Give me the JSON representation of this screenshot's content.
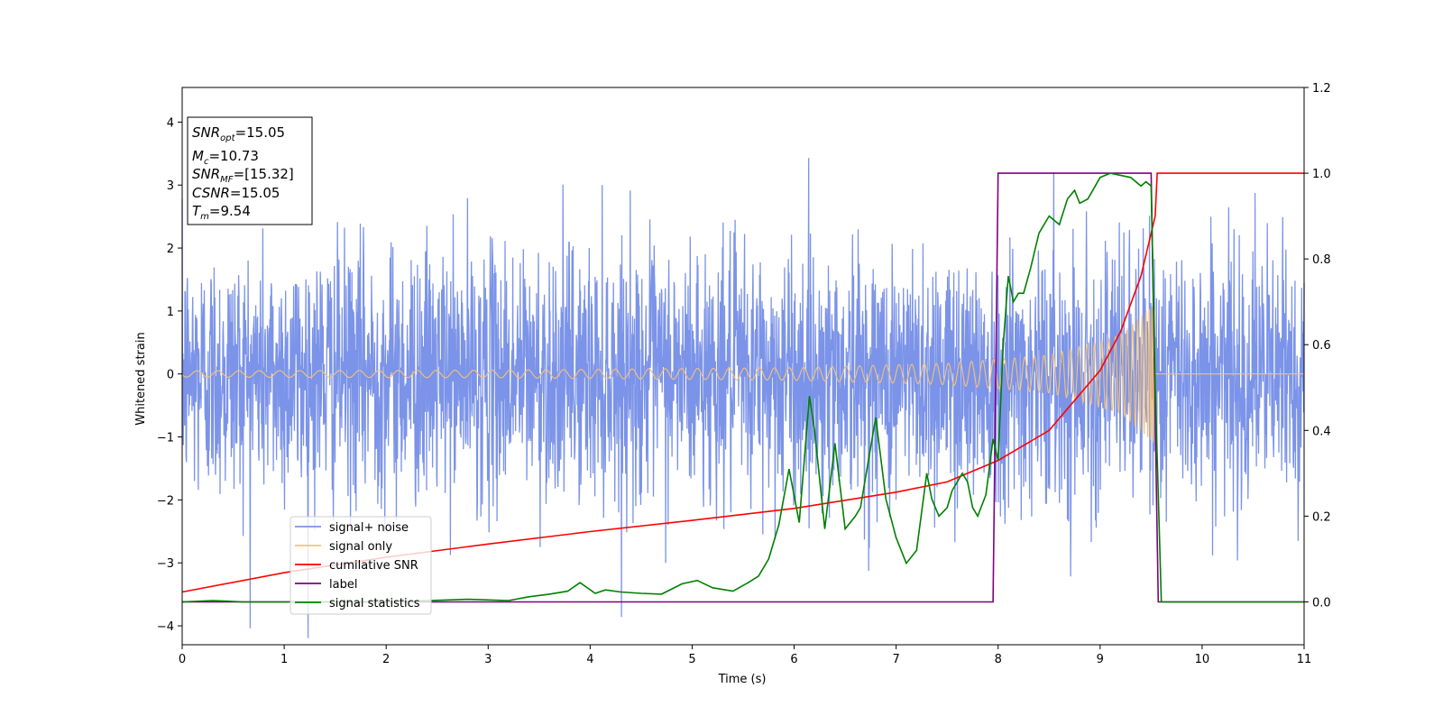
{
  "chart_data": {
    "type": "line",
    "xlabel": "Time (s)",
    "ylabel": "Whitened strain",
    "xlim": [
      0,
      11
    ],
    "ylim": [
      -4.3,
      4.55
    ],
    "y2lim": [
      -0.1,
      1.2
    ],
    "xticks": [
      0,
      1,
      2,
      3,
      4,
      5,
      6,
      7,
      8,
      9,
      10,
      11
    ],
    "yticks": [
      -4,
      -3,
      -2,
      -1,
      0,
      1,
      2,
      3,
      4
    ],
    "y2ticks": [
      "0.0",
      "0.2",
      "0.4",
      "0.6",
      "0.8",
      "1.0",
      "1.2"
    ],
    "legend_position": "lower-left",
    "info_box": {
      "lines": [
        {
          "base": "SNR",
          "sub": "opt",
          "rest": "=15.05"
        },
        {
          "base": "M",
          "sub": "c",
          "rest": "=10.73"
        },
        {
          "base": "SNR",
          "sub": "MF",
          "rest": "=[15.32]"
        },
        {
          "base": "CSNR",
          "sub": "",
          "rest": "=15.05"
        },
        {
          "base": "T",
          "sub": "m",
          "rest": "=9.54"
        }
      ]
    },
    "series": [
      {
        "name": "signal+ noise",
        "color": "#7b93e8",
        "axis": "left",
        "noise_std": 1.0,
        "noise_max_abs": 4.2
      },
      {
        "name": "signal only",
        "color": "#f5c27a",
        "axis": "left",
        "chirp_amplitude": [
          [
            0,
            0.05
          ],
          [
            3,
            0.06
          ],
          [
            6,
            0.1
          ],
          [
            7.5,
            0.17
          ],
          [
            8.5,
            0.3
          ],
          [
            9.2,
            0.62
          ],
          [
            9.53,
            1.1
          ],
          [
            9.54,
            0
          ]
        ]
      },
      {
        "name": "cumilative SNR",
        "color": "#ff0000",
        "axis": "right",
        "x": [
          0,
          1,
          2,
          3,
          4,
          5,
          6,
          7,
          7.5,
          8,
          8.5,
          9,
          9.2,
          9.4,
          9.5,
          9.54,
          9.56,
          11
        ],
        "y": [
          0.023,
          0.068,
          0.104,
          0.135,
          0.164,
          0.19,
          0.218,
          0.256,
          0.28,
          0.33,
          0.4,
          0.54,
          0.63,
          0.76,
          0.86,
          0.9,
          1.0,
          1.0
        ]
      },
      {
        "name": "label",
        "color": "#800080",
        "axis": "right",
        "x": [
          0,
          7.95,
          8.0,
          9.5,
          9.57,
          11
        ],
        "y": [
          0,
          0,
          1,
          1,
          0,
          0
        ]
      },
      {
        "name": "signal statistics",
        "color": "#008000",
        "axis": "right",
        "x": [
          0,
          0.3,
          0.6,
          1,
          2,
          2.8,
          3.2,
          3.4,
          3.6,
          3.78,
          3.9,
          4.05,
          4.15,
          4.3,
          4.5,
          4.7,
          4.9,
          5.05,
          5.2,
          5.4,
          5.55,
          5.65,
          5.75,
          5.85,
          5.95,
          6.05,
          6.15,
          6.2,
          6.3,
          6.4,
          6.5,
          6.6,
          6.65,
          6.7,
          6.8,
          6.9,
          7.0,
          7.1,
          7.2,
          7.3,
          7.35,
          7.42,
          7.5,
          7.55,
          7.65,
          7.7,
          7.75,
          7.8,
          7.88,
          7.95,
          8.0,
          8.05,
          8.1,
          8.15,
          8.2,
          8.25,
          8.32,
          8.4,
          8.5,
          8.6,
          8.68,
          8.75,
          8.8,
          8.88,
          9.0,
          9.1,
          9.3,
          9.4,
          9.45,
          9.5,
          9.54,
          9.6,
          9.7,
          11
        ],
        "y": [
          0,
          0.003,
          0.0,
          0.0,
          0.0,
          0.006,
          0.003,
          0.012,
          0.018,
          0.025,
          0.045,
          0.02,
          0.028,
          0.023,
          0.02,
          0.018,
          0.042,
          0.05,
          0.033,
          0.025,
          0.045,
          0.06,
          0.1,
          0.18,
          0.31,
          0.185,
          0.48,
          0.4,
          0.17,
          0.37,
          0.17,
          0.2,
          0.22,
          0.29,
          0.43,
          0.24,
          0.15,
          0.09,
          0.12,
          0.3,
          0.24,
          0.2,
          0.22,
          0.26,
          0.3,
          0.28,
          0.22,
          0.2,
          0.25,
          0.38,
          0.33,
          0.6,
          0.76,
          0.7,
          0.72,
          0.72,
          0.78,
          0.86,
          0.9,
          0.88,
          0.94,
          0.96,
          0.93,
          0.94,
          0.99,
          1.0,
          0.99,
          0.97,
          0.98,
          0.97,
          0.5,
          0.0,
          0.0,
          0.0
        ]
      }
    ]
  }
}
